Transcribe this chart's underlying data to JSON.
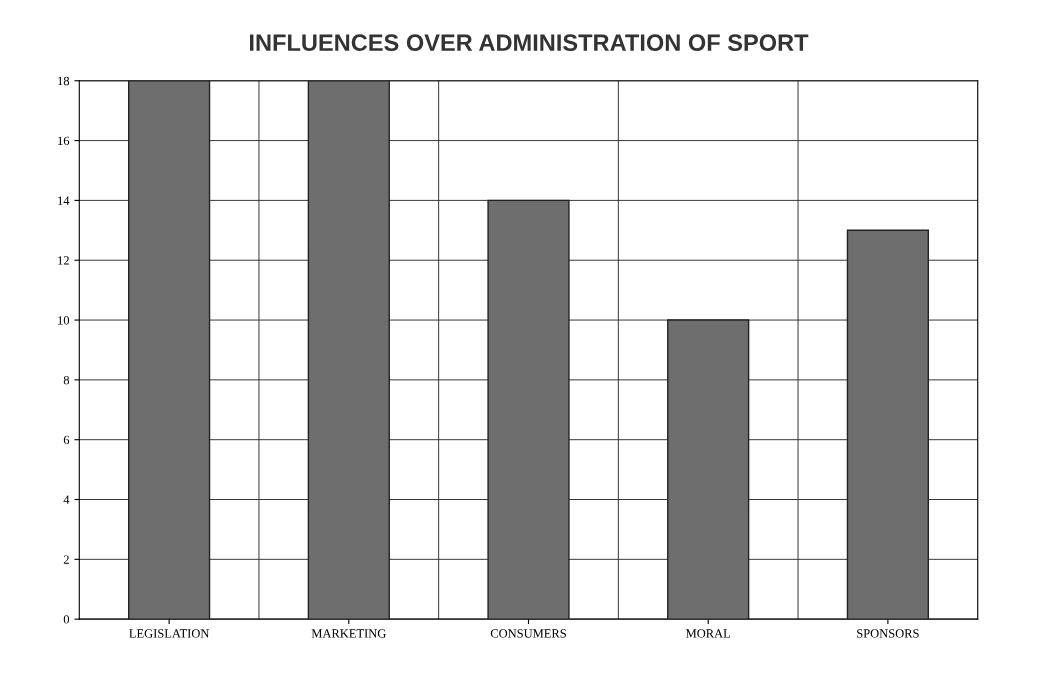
{
  "chart_data": {
    "type": "bar",
    "title": "INFLUENCES OVER ADMINISTRATION OF SPORT",
    "categories": [
      "LEGISLATION",
      "MARKETING",
      "CONSUMERS",
      "MORAL",
      "SPONSORS"
    ],
    "values": [
      18,
      18,
      14,
      10,
      13
    ],
    "color": "#6e6e6e",
    "ylim": [
      0,
      18
    ],
    "yticks": [
      0,
      2,
      4,
      6,
      8,
      10,
      12,
      14,
      16,
      18
    ],
    "grid": true
  }
}
